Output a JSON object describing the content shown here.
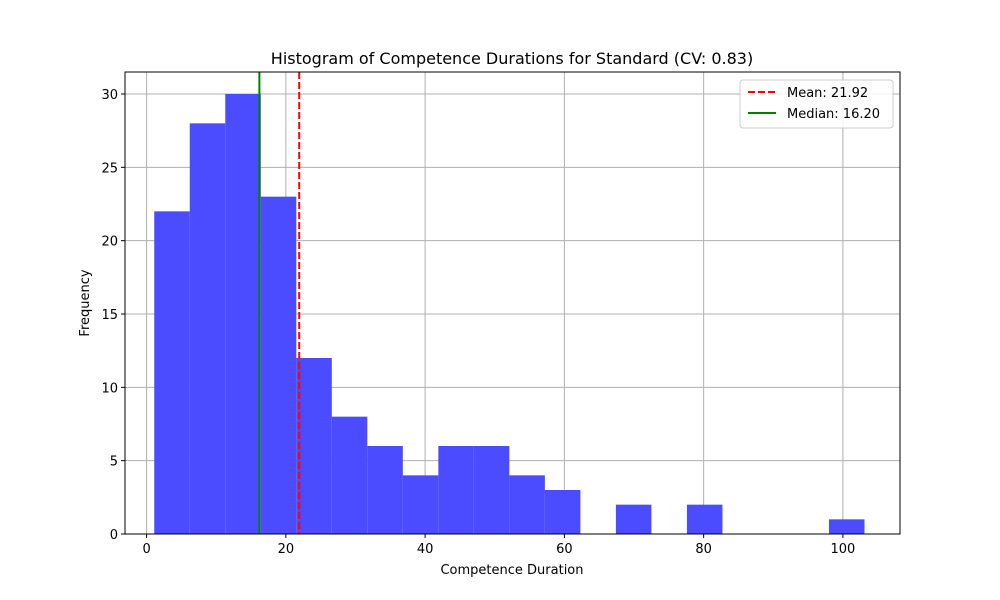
{
  "chart_data": {
    "type": "bar",
    "title": "Histogram of Competence Durations for Standard (CV: 0.83)",
    "xlabel": "Competence Duration",
    "ylabel": "Frequency",
    "xlim": [
      -3.1,
      108.2
    ],
    "ylim": [
      0,
      31.5
    ],
    "grid": true,
    "xticks": [
      0,
      20,
      40,
      60,
      80,
      100
    ],
    "yticks": [
      0,
      5,
      10,
      15,
      20,
      25,
      30
    ],
    "bins": [
      {
        "start": 1.1,
        "end": 6.2,
        "count": 22
      },
      {
        "start": 6.2,
        "end": 11.3,
        "count": 28
      },
      {
        "start": 11.3,
        "end": 16.4,
        "count": 30
      },
      {
        "start": 16.4,
        "end": 21.5,
        "count": 23
      },
      {
        "start": 21.5,
        "end": 26.6,
        "count": 12
      },
      {
        "start": 26.6,
        "end": 31.7,
        "count": 8
      },
      {
        "start": 31.7,
        "end": 36.8,
        "count": 6
      },
      {
        "start": 36.8,
        "end": 41.9,
        "count": 4
      },
      {
        "start": 41.9,
        "end": 47.0,
        "count": 6
      },
      {
        "start": 47.0,
        "end": 52.1,
        "count": 6
      },
      {
        "start": 52.1,
        "end": 57.2,
        "count": 4
      },
      {
        "start": 57.2,
        "end": 62.3,
        "count": 3
      },
      {
        "start": 62.3,
        "end": 67.4,
        "count": 0
      },
      {
        "start": 67.4,
        "end": 72.5,
        "count": 2
      },
      {
        "start": 72.5,
        "end": 77.6,
        "count": 0
      },
      {
        "start": 77.6,
        "end": 82.7,
        "count": 2
      },
      {
        "start": 82.7,
        "end": 87.8,
        "count": 0
      },
      {
        "start": 87.8,
        "end": 92.9,
        "count": 0
      },
      {
        "start": 92.9,
        "end": 98.0,
        "count": 0
      },
      {
        "start": 98.0,
        "end": 103.1,
        "count": 1
      }
    ],
    "bar_color": "#4B4BFF",
    "lines": [
      {
        "label": "Mean: 21.92",
        "value": 21.92,
        "color": "#FF0000",
        "style": "dashed"
      },
      {
        "label": "Median: 16.20",
        "value": 16.2,
        "color": "#008000",
        "style": "solid"
      }
    ],
    "legend_position": "top-right"
  }
}
